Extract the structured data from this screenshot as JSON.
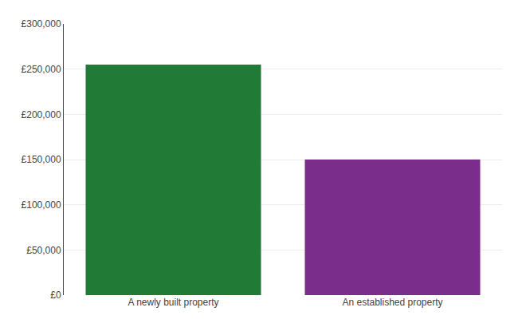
{
  "chart_data": {
    "type": "bar",
    "categories": [
      "A newly built property",
      "An established property"
    ],
    "values": [
      255000,
      150000
    ],
    "colors": [
      "#217a35",
      "#7b2d8b"
    ],
    "ylim": [
      0,
      300000
    ],
    "yticks": [
      {
        "value": 0,
        "label": "£0"
      },
      {
        "value": 50000,
        "label": "£50,000"
      },
      {
        "value": 100000,
        "label": "£100,000"
      },
      {
        "value": 150000,
        "label": "£150,000"
      },
      {
        "value": 200000,
        "label": "£200,000"
      },
      {
        "value": 250000,
        "label": "£250,000"
      },
      {
        "value": 300000,
        "label": "£300,000"
      }
    ],
    "grid": true
  }
}
